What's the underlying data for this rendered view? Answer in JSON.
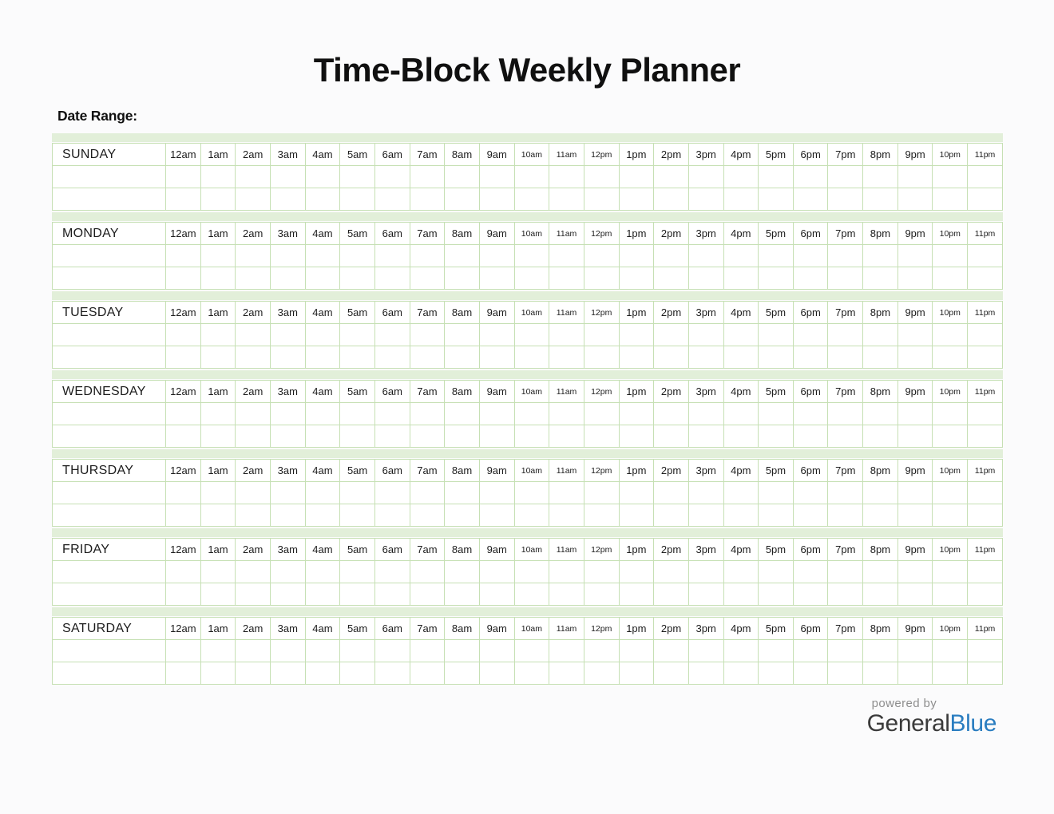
{
  "page": {
    "title": "Time-Block Weekly Planner",
    "date_range_label": "Date Range:"
  },
  "planner": {
    "days": [
      "SUNDAY",
      "MONDAY",
      "TUESDAY",
      "WEDNESDAY",
      "THURSDAY",
      "FRIDAY",
      "SATURDAY"
    ],
    "hours": [
      {
        "label": "12am",
        "small": false
      },
      {
        "label": "1am",
        "small": false
      },
      {
        "label": "2am",
        "small": false
      },
      {
        "label": "3am",
        "small": false
      },
      {
        "label": "4am",
        "small": false
      },
      {
        "label": "5am",
        "small": false
      },
      {
        "label": "6am",
        "small": false
      },
      {
        "label": "7am",
        "small": false
      },
      {
        "label": "8am",
        "small": false
      },
      {
        "label": "9am",
        "small": false
      },
      {
        "label": "10am",
        "small": true
      },
      {
        "label": "11am",
        "small": true
      },
      {
        "label": "12pm",
        "small": true
      },
      {
        "label": "1pm",
        "small": false
      },
      {
        "label": "2pm",
        "small": false
      },
      {
        "label": "3pm",
        "small": false
      },
      {
        "label": "4pm",
        "small": false
      },
      {
        "label": "5pm",
        "small": false
      },
      {
        "label": "6pm",
        "small": false
      },
      {
        "label": "7pm",
        "small": false
      },
      {
        "label": "8pm",
        "small": false
      },
      {
        "label": "9pm",
        "small": false
      },
      {
        "label": "10pm",
        "small": true
      },
      {
        "label": "11pm",
        "small": true
      }
    ],
    "blank_rows_per_day": 2
  },
  "footer": {
    "powered_by": "powered by",
    "brand": {
      "first": "General",
      "second": "Blue"
    }
  },
  "colors": {
    "strip_green": "#e2efd9",
    "grid_green": "#c6e0b4",
    "brand_blue": "#2a7dc0",
    "brand_dark": "#3b3b3b",
    "muted_gray": "#8e8e8e"
  }
}
